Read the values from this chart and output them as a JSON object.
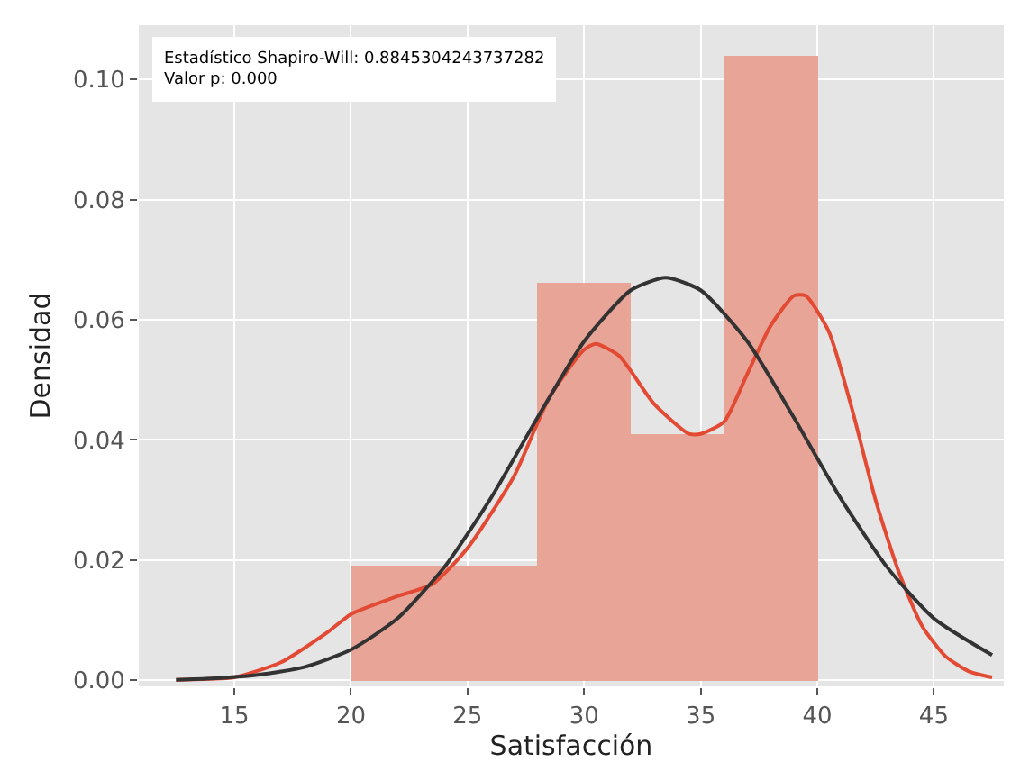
{
  "chart_data": {
    "type": "histogram",
    "xlabel": "Satisfacción",
    "ylabel": "Densidad",
    "bins": [
      20,
      28,
      32,
      36,
      40
    ],
    "values": [
      0.019,
      0.066,
      0.041,
      0.104
    ],
    "color": "#e8a597",
    "series": [
      {
        "type": "line",
        "color": "#e24a33",
        "x": [
          12.5,
          15,
          17,
          19,
          20,
          22,
          23.5,
          25,
          27,
          28.5,
          30,
          30.5,
          31.5,
          33,
          34.5,
          35,
          36,
          37,
          38,
          39,
          39.5,
          40.5,
          41.5,
          42.5,
          43.5,
          44.5,
          45.5,
          46.5,
          47.5
        ],
        "values": [
          0.0001,
          0.0005,
          0.003,
          0.008,
          0.011,
          0.014,
          0.016,
          0.022,
          0.034,
          0.047,
          0.055,
          0.056,
          0.054,
          0.046,
          0.041,
          0.041,
          0.043,
          0.051,
          0.059,
          0.064,
          0.064,
          0.058,
          0.045,
          0.03,
          0.018,
          0.009,
          0.004,
          0.0015,
          0.0005
        ]
      },
      {
        "type": "line",
        "color": "#333333",
        "x": [
          12.5,
          14,
          16,
          18,
          20,
          22,
          24,
          26,
          28,
          30,
          32,
          33.5,
          35,
          37,
          39,
          41,
          43,
          45,
          47.5
        ],
        "values": [
          0.0001,
          0.0003,
          0.0009,
          0.0022,
          0.0051,
          0.0103,
          0.0188,
          0.0303,
          0.0437,
          0.0564,
          0.0649,
          0.067,
          0.0649,
          0.0564,
          0.0437,
          0.0303,
          0.0188,
          0.0103,
          0.0042
        ]
      }
    ],
    "xlim": [
      10.9,
      48
    ],
    "xticks": [
      15,
      20,
      25,
      30,
      35,
      40,
      45
    ],
    "ylim": [
      -0.001,
      0.109
    ],
    "yticks": [
      {
        "value": 0,
        "label": "0.00"
      },
      {
        "value": 0.02,
        "label": "0.02"
      },
      {
        "value": 0.04,
        "label": "0.04"
      },
      {
        "value": 0.06,
        "label": "0.06"
      },
      {
        "value": 0.08,
        "label": "0.08"
      },
      {
        "value": 0.1,
        "label": "0.10"
      }
    ],
    "grid": true,
    "line_style": "solid",
    "marker": "none",
    "annotations": [
      "Estadístico Shapiro-Will: 0.8845304243737282\nValor p: 0.000"
    ]
  }
}
